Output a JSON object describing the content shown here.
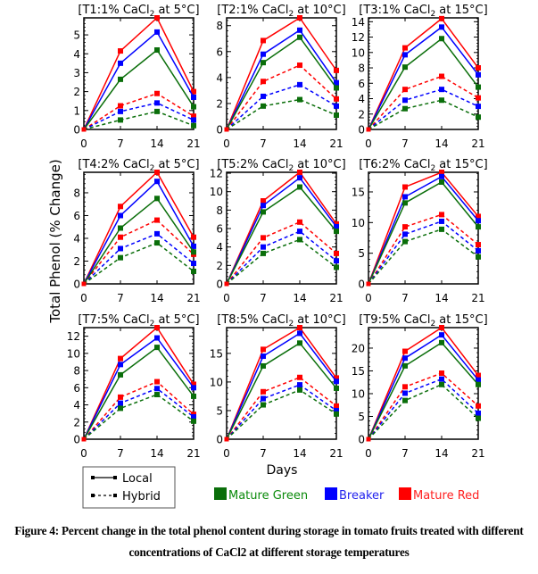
{
  "caption": {
    "line1": "Figure 4: Percent change in the total phenol content during storage in tomato  fruits treated with different",
    "line2": "concentrations  of CaCl2 at different storage temperatures"
  },
  "chart_data": {
    "type": "line",
    "title": "",
    "xlabel": "Days",
    "ylabel": "Total Phenol (% Change)",
    "x": [
      0,
      7,
      14,
      21
    ],
    "x_ticks": [
      "0",
      "7",
      "14",
      "21"
    ],
    "colors": {
      "Mature Green": "#0a6e0a",
      "Breaker": "#0000ff",
      "Mature Red": "#ff0000"
    },
    "stages": [
      "Mature Green",
      "Breaker",
      "Mature Red"
    ],
    "stage_colors": [
      "#0a6e0a",
      "#0000ff",
      "#ff0000"
    ],
    "legend_varieties": [
      {
        "name": "Local",
        "style": "solid"
      },
      {
        "name": "Hybrid",
        "style": "dashed"
      }
    ],
    "legend_placement": "bottom",
    "grid": false,
    "panels": [
      {
        "title_prefix": "[T1:1% CaCl",
        "title_sub": "2",
        "title_suffix": " at 5°C]",
        "ylim": [
          0,
          5.9
        ],
        "yticks": [
          0,
          1,
          2,
          3,
          4,
          5
        ],
        "series": [
          {
            "variety": "Local",
            "stage": "Mature Red",
            "values": [
              0,
              4.15,
              5.9,
              2.0
            ]
          },
          {
            "variety": "Local",
            "stage": "Breaker",
            "values": [
              0,
              3.5,
              5.15,
              1.7
            ]
          },
          {
            "variety": "Local",
            "stage": "Mature Green",
            "values": [
              0,
              2.65,
              4.2,
              1.2
            ]
          },
          {
            "variety": "Hybrid",
            "stage": "Mature Red",
            "values": [
              0,
              1.25,
              1.9,
              0.7
            ]
          },
          {
            "variety": "Hybrid",
            "stage": "Breaker",
            "values": [
              0,
              0.95,
              1.4,
              0.5
            ]
          },
          {
            "variety": "Hybrid",
            "stage": "Mature Green",
            "values": [
              0,
              0.5,
              0.95,
              0.2
            ]
          }
        ]
      },
      {
        "title_prefix": "[T2:1% CaCl",
        "title_sub": "2",
        "title_suffix": " at 10°C]",
        "ylim": [
          0,
          8.6
        ],
        "yticks": [
          0,
          2,
          4,
          6,
          8
        ],
        "series": [
          {
            "variety": "Local",
            "stage": "Mature Red",
            "values": [
              0,
              6.85,
              8.6,
              4.55
            ]
          },
          {
            "variety": "Local",
            "stage": "Breaker",
            "values": [
              0,
              5.8,
              7.65,
              3.6
            ]
          },
          {
            "variety": "Local",
            "stage": "Mature Green",
            "values": [
              0,
              5.15,
              7.1,
              3.2
            ]
          },
          {
            "variety": "Hybrid",
            "stage": "Mature Red",
            "values": [
              0,
              3.7,
              4.95,
              2.35
            ]
          },
          {
            "variety": "Hybrid",
            "stage": "Breaker",
            "values": [
              0,
              2.55,
              3.45,
              1.8
            ]
          },
          {
            "variety": "Hybrid",
            "stage": "Mature Green",
            "values": [
              0,
              1.8,
              2.3,
              1.1
            ]
          }
        ]
      },
      {
        "title_prefix": "[T3:1% CaCl",
        "title_sub": "2",
        "title_suffix": " at 15°C]",
        "ylim": [
          0,
          14.5
        ],
        "yticks": [
          0,
          2,
          4,
          6,
          8,
          10,
          12,
          14
        ],
        "series": [
          {
            "variety": "Local",
            "stage": "Mature Red",
            "values": [
              0,
              10.6,
              14.4,
              8.0
            ]
          },
          {
            "variety": "Local",
            "stage": "Breaker",
            "values": [
              0,
              9.7,
              13.3,
              7.1
            ]
          },
          {
            "variety": "Local",
            "stage": "Mature Green",
            "values": [
              0,
              8.1,
              11.8,
              5.5
            ]
          },
          {
            "variety": "Hybrid",
            "stage": "Mature Red",
            "values": [
              0,
              5.2,
              6.9,
              4.1
            ]
          },
          {
            "variety": "Hybrid",
            "stage": "Breaker",
            "values": [
              0,
              3.8,
              5.2,
              3.0
            ]
          },
          {
            "variety": "Hybrid",
            "stage": "Mature Green",
            "values": [
              0,
              2.7,
              3.8,
              1.6
            ]
          }
        ]
      },
      {
        "title_prefix": "[T4:2% CaCl",
        "title_sub": "2",
        "title_suffix": " at 5°C]",
        "ylim": [
          0,
          9.8
        ],
        "yticks": [
          0,
          2,
          4,
          6,
          8
        ],
        "series": [
          {
            "variety": "Local",
            "stage": "Mature Red",
            "values": [
              0,
              6.8,
              9.8,
              4.1
            ]
          },
          {
            "variety": "Local",
            "stage": "Breaker",
            "values": [
              0,
              6.0,
              9.0,
              3.3
            ]
          },
          {
            "variety": "Local",
            "stage": "Mature Green",
            "values": [
              0,
              4.9,
              7.5,
              2.8
            ]
          },
          {
            "variety": "Hybrid",
            "stage": "Mature Red",
            "values": [
              0,
              4.1,
              5.6,
              2.6
            ]
          },
          {
            "variety": "Hybrid",
            "stage": "Breaker",
            "values": [
              0,
              3.1,
              4.4,
              1.8
            ]
          },
          {
            "variety": "Hybrid",
            "stage": "Mature Green",
            "values": [
              0,
              2.3,
              3.6,
              1.1
            ]
          }
        ]
      },
      {
        "title_prefix": "[T5:2% CaCl",
        "title_sub": "2",
        "title_suffix": " at 10°C]",
        "ylim": [
          0,
          12.1
        ],
        "yticks": [
          0,
          2,
          4,
          6,
          8,
          10,
          12
        ],
        "series": [
          {
            "variety": "Local",
            "stage": "Mature Red",
            "values": [
              0,
              9.0,
              12.1,
              6.5
            ]
          },
          {
            "variety": "Local",
            "stage": "Breaker",
            "values": [
              0,
              8.5,
              11.5,
              6.2
            ]
          },
          {
            "variety": "Local",
            "stage": "Mature Green",
            "values": [
              0,
              7.8,
              10.5,
              5.7
            ]
          },
          {
            "variety": "Hybrid",
            "stage": "Mature Red",
            "values": [
              0,
              5.0,
              6.7,
              3.3
            ]
          },
          {
            "variety": "Hybrid",
            "stage": "Breaker",
            "values": [
              0,
              4.0,
              5.7,
              2.5
            ]
          },
          {
            "variety": "Hybrid",
            "stage": "Mature Green",
            "values": [
              0,
              3.3,
              4.8,
              1.8
            ]
          }
        ]
      },
      {
        "title_prefix": "[T6:2% CaCl",
        "title_sub": "2",
        "title_suffix": " at 15°C]",
        "ylim": [
          0,
          18.2
        ],
        "yticks": [
          0,
          5,
          10,
          15
        ],
        "series": [
          {
            "variety": "Local",
            "stage": "Mature Red",
            "values": [
              0,
              15.8,
              18.2,
              11.0
            ]
          },
          {
            "variety": "Local",
            "stage": "Breaker",
            "values": [
              0,
              14.2,
              17.5,
              10.3
            ]
          },
          {
            "variety": "Local",
            "stage": "Mature Green",
            "values": [
              0,
              13.2,
              16.6,
              9.3
            ]
          },
          {
            "variety": "Hybrid",
            "stage": "Mature Red",
            "values": [
              0,
              9.3,
              11.3,
              6.4
            ]
          },
          {
            "variety": "Hybrid",
            "stage": "Breaker",
            "values": [
              0,
              8.1,
              10.2,
              5.4
            ]
          },
          {
            "variety": "Hybrid",
            "stage": "Mature Green",
            "values": [
              0,
              6.9,
              8.9,
              4.4
            ]
          }
        ]
      },
      {
        "title_prefix": "[T7:5% CaCl",
        "title_sub": "2",
        "title_suffix": " at 5°C]",
        "ylim": [
          0,
          13.0
        ],
        "yticks": [
          0,
          2,
          4,
          6,
          8,
          10,
          12
        ],
        "series": [
          {
            "variety": "Local",
            "stage": "Mature Red",
            "values": [
              0,
              9.4,
              13.0,
              6.4
            ]
          },
          {
            "variety": "Local",
            "stage": "Breaker",
            "values": [
              0,
              8.7,
              11.8,
              6.0
            ]
          },
          {
            "variety": "Local",
            "stage": "Mature Green",
            "values": [
              0,
              7.5,
              10.7,
              5.0
            ]
          },
          {
            "variety": "Hybrid",
            "stage": "Mature Red",
            "values": [
              0,
              4.9,
              6.7,
              2.9
            ]
          },
          {
            "variety": "Hybrid",
            "stage": "Breaker",
            "values": [
              0,
              4.2,
              5.9,
              2.6
            ]
          },
          {
            "variety": "Hybrid",
            "stage": "Mature Green",
            "values": [
              0,
              3.6,
              5.2,
              2.1
            ]
          }
        ]
      },
      {
        "title_prefix": "[T8:5% CaCl",
        "title_sub": "2",
        "title_suffix": " at 10°C]",
        "ylim": [
          0,
          19.5
        ],
        "yticks": [
          0,
          5,
          10,
          15
        ],
        "series": [
          {
            "variety": "Local",
            "stage": "Mature Red",
            "values": [
              0,
              15.7,
              19.5,
              10.7
            ]
          },
          {
            "variety": "Local",
            "stage": "Breaker",
            "values": [
              0,
              14.5,
              18.5,
              10.1
            ]
          },
          {
            "variety": "Local",
            "stage": "Mature Green",
            "values": [
              0,
              12.8,
              16.8,
              8.9
            ]
          },
          {
            "variety": "Hybrid",
            "stage": "Mature Red",
            "values": [
              0,
              8.3,
              10.8,
              5.8
            ]
          },
          {
            "variety": "Hybrid",
            "stage": "Breaker",
            "values": [
              0,
              7.1,
              9.5,
              5.0
            ]
          },
          {
            "variety": "Hybrid",
            "stage": "Mature Green",
            "values": [
              0,
              6.0,
              8.6,
              4.4
            ]
          }
        ]
      },
      {
        "title_prefix": "[T9:5% CaCl",
        "title_sub": "2",
        "title_suffix": " at 15°C]",
        "ylim": [
          0,
          24.5
        ],
        "yticks": [
          0,
          5,
          10,
          15,
          20
        ],
        "series": [
          {
            "variety": "Local",
            "stage": "Mature Red",
            "values": [
              0,
              19.3,
              24.5,
              14.0
            ]
          },
          {
            "variety": "Local",
            "stage": "Breaker",
            "values": [
              0,
              17.8,
              22.9,
              13.0
            ]
          },
          {
            "variety": "Local",
            "stage": "Mature Green",
            "values": [
              0,
              16.1,
              21.2,
              12.0
            ]
          },
          {
            "variety": "Hybrid",
            "stage": "Mature Red",
            "values": [
              0,
              11.5,
              14.5,
              7.3
            ]
          },
          {
            "variety": "Hybrid",
            "stage": "Breaker",
            "values": [
              0,
              10.1,
              13.2,
              5.7
            ]
          },
          {
            "variety": "Hybrid",
            "stage": "Mature Green",
            "values": [
              0,
              8.5,
              12.0,
              4.6
            ]
          }
        ]
      }
    ]
  }
}
